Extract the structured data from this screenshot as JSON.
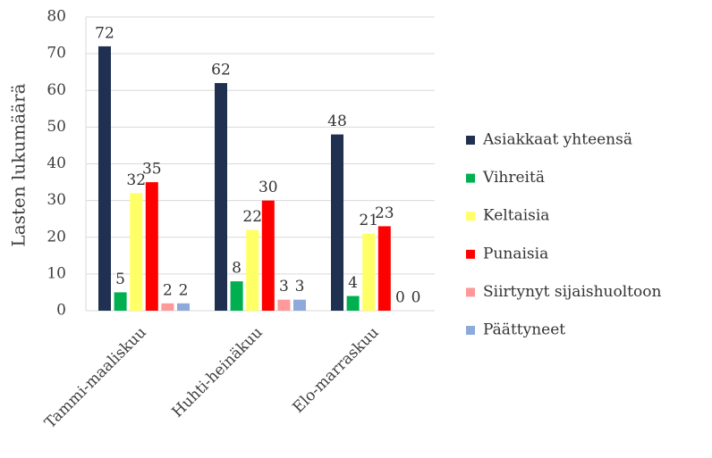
{
  "chart_data": {
    "type": "bar",
    "y_label": "Lasten lukumäärä",
    "categories": [
      "Tammi-maaliskuu",
      "Huhti-heinäkuu",
      "Elo-marraskuu"
    ],
    "series": [
      {
        "name": "Asiakkaat yhteensä",
        "color": "#1f3050",
        "values": [
          72,
          62,
          48
        ]
      },
      {
        "name": "Vihreitä",
        "color": "#00b050",
        "values": [
          5,
          8,
          4
        ]
      },
      {
        "name": "Keltaisia",
        "color": "#ffff66",
        "values": [
          32,
          22,
          21
        ]
      },
      {
        "name": "Punaisia",
        "color": "#ff0000",
        "values": [
          35,
          30,
          23
        ]
      },
      {
        "name": "Siirtynyt sijaishuoltoon",
        "color": "#ff9999",
        "values": [
          2,
          3,
          0
        ]
      },
      {
        "name": "Päättyneet",
        "color": "#8eaadb",
        "values": [
          2,
          3,
          0
        ]
      }
    ],
    "ylim": [
      0,
      80
    ],
    "yticks": [
      0,
      10,
      20,
      30,
      40,
      50,
      60,
      70,
      80
    ],
    "grid": true,
    "legend": "right"
  }
}
